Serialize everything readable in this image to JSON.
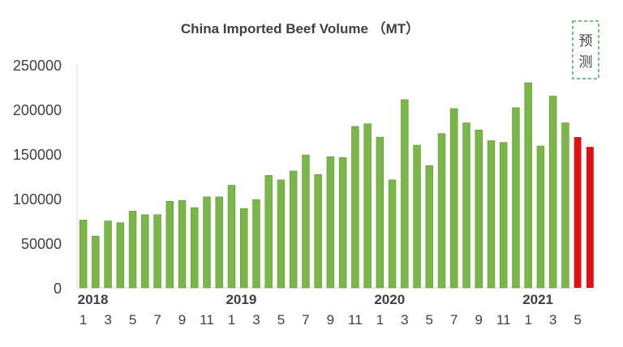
{
  "chart_data": {
    "type": "bar",
    "title": "China Imported Beef Volume （MT）",
    "forecast_label": "预测",
    "colors": {
      "actual": "#7ab648",
      "actual_edge": "#5e9838",
      "forecast": "#e01010",
      "forecast_box": "#4caf50"
    },
    "y_ticks": [
      "0",
      "50000",
      "100000",
      "150000",
      "200000",
      "250000"
    ],
    "ylim": [
      0,
      250000
    ],
    "year_labels": [
      {
        "label": "2018",
        "at_index": 0
      },
      {
        "label": "2019",
        "at_index": 12
      },
      {
        "label": "2020",
        "at_index": 24
      },
      {
        "label": "2021",
        "at_index": 36
      }
    ],
    "month_labels": [
      "1",
      "",
      "3",
      "",
      "5",
      "",
      "7",
      "",
      "9",
      "",
      "11",
      "",
      "1",
      "",
      "3",
      "",
      "5",
      "",
      "7",
      "",
      "9",
      "",
      "11",
      "",
      "1",
      "",
      "3",
      "",
      "5",
      "",
      "7",
      "",
      "9",
      "",
      "11",
      "",
      "1",
      "",
      "3",
      "",
      "5",
      ""
    ],
    "values": [
      76000,
      58000,
      75000,
      73000,
      86000,
      82000,
      82000,
      97000,
      98000,
      90000,
      102000,
      102000,
      115000,
      89000,
      99000,
      126000,
      121000,
      131000,
      149000,
      127000,
      147000,
      146000,
      181000,
      184000,
      169000,
      121000,
      211000,
      160000,
      137000,
      173000,
      201000,
      185000,
      177000,
      165000,
      163000,
      202000,
      230000,
      159000,
      215000,
      185000,
      169000,
      158000
    ],
    "forecast_from_index": 40
  }
}
